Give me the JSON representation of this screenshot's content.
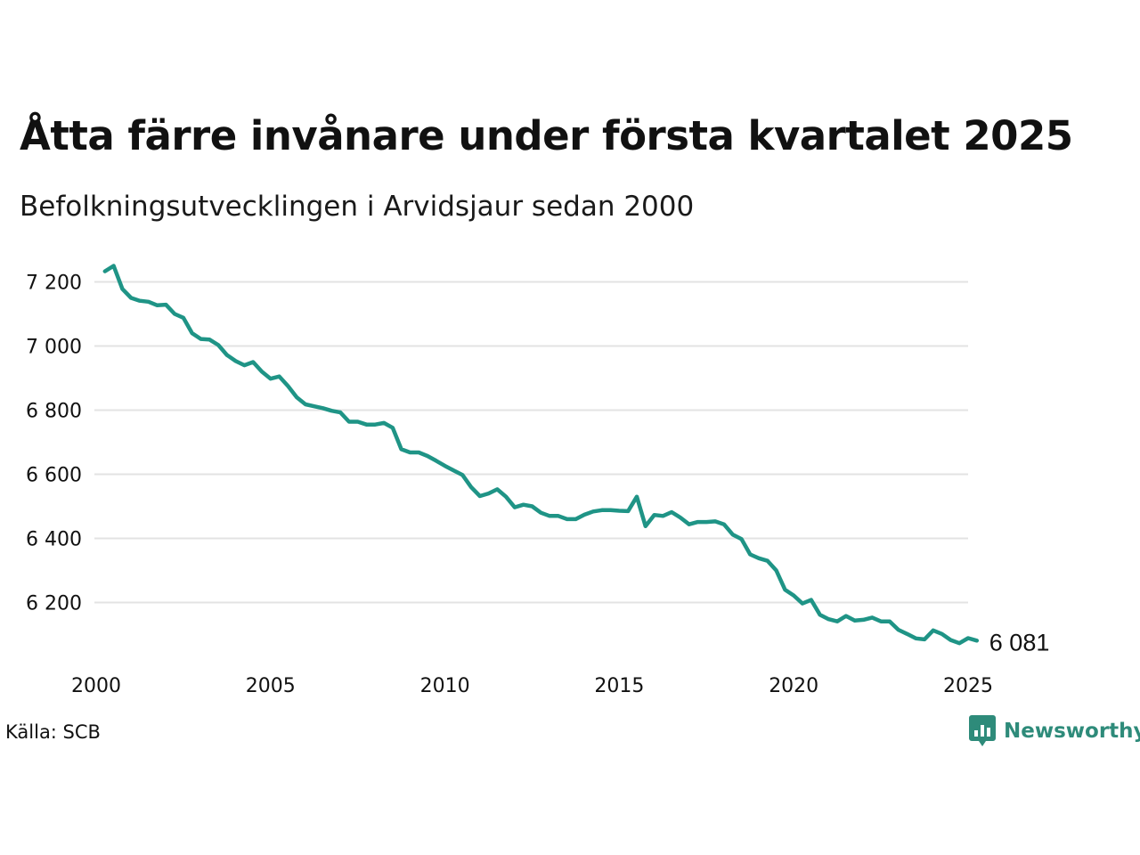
{
  "chart": {
    "title": "Åtta färre invånare under första kvartalet 2025",
    "subtitle": "Befolkningsutvecklingen i Arvidsjaur sedan 2000",
    "source": "Källa: SCB",
    "brand": "Newsworthy",
    "end_label": "6 081",
    "line_color": "#1f9486",
    "grid_color": "#e3e3e3",
    "brand_color": "#2e8b7a"
  },
  "chart_data": {
    "type": "line",
    "xlim": [
      2000,
      2025
    ],
    "ylim": [
      6080,
      7250
    ],
    "x_ticks": [
      2000,
      2005,
      2010,
      2015,
      2020,
      2025
    ],
    "x_tick_labels": [
      "2000",
      "2005",
      "2010",
      "2015",
      "2020",
      "2025"
    ],
    "y_ticks": [
      6200,
      6400,
      6600,
      6800,
      7000,
      7200
    ],
    "y_tick_labels": [
      "6 200",
      "6 400",
      "6 600",
      "6 800",
      "7 000",
      "7 200"
    ],
    "grid": "horizontal",
    "x": [
      2000.25,
      2000.5,
      2000.75,
      2001,
      2001.25,
      2001.5,
      2001.75,
      2002,
      2002.25,
      2002.5,
      2002.75,
      2003,
      2003.25,
      2003.5,
      2003.75,
      2004,
      2004.25,
      2004.5,
      2004.75,
      2005,
      2005.25,
      2005.5,
      2005.75,
      2006,
      2006.25,
      2006.5,
      2006.75,
      2007,
      2007.25,
      2007.5,
      2007.75,
      2008,
      2008.25,
      2008.5,
      2008.75,
      2009,
      2009.25,
      2009.5,
      2009.75,
      2010,
      2010.25,
      2010.5,
      2010.75,
      2011,
      2011.25,
      2011.5,
      2011.75,
      2012,
      2012.25,
      2012.5,
      2012.75,
      2013,
      2013.25,
      2013.5,
      2013.75,
      2014,
      2014.25,
      2014.5,
      2014.75,
      2015,
      2015.25,
      2015.5,
      2015.75,
      2016,
      2016.25,
      2016.5,
      2016.75,
      2017,
      2017.25,
      2017.5,
      2017.75,
      2018,
      2018.25,
      2018.5,
      2018.75,
      2019,
      2019.25,
      2019.5,
      2019.75,
      2020,
      2020.25,
      2020.5,
      2020.75,
      2021,
      2021.25,
      2021.5,
      2021.75,
      2022,
      2022.25,
      2022.5,
      2022.75,
      2023,
      2023.25,
      2023.5,
      2023.75,
      2024,
      2024.25,
      2024.5,
      2024.75,
      2025,
      2025.25
    ],
    "series": [
      {
        "values": [
          7233,
          7250,
          7178,
          7150,
          7141,
          7138,
          7127,
          7129,
          7100,
          7088,
          7040,
          7022,
          7020,
          7003,
          6972,
          6953,
          6940,
          6950,
          6920,
          6898,
          6905,
          6875,
          6840,
          6818,
          6812,
          6806,
          6798,
          6793,
          6764,
          6764,
          6755,
          6755,
          6760,
          6745,
          6678,
          6668,
          6668,
          6657,
          6642,
          6626,
          6612,
          6598,
          6560,
          6532,
          6540,
          6553,
          6530,
          6497,
          6505,
          6500,
          6480,
          6470,
          6470,
          6460,
          6460,
          6474,
          6484,
          6488,
          6488,
          6486,
          6485,
          6530,
          6438,
          6473,
          6470,
          6482,
          6465,
          6444,
          6451,
          6451,
          6453,
          6444,
          6412,
          6398,
          6350,
          6338,
          6330,
          6300,
          6240,
          6222,
          6197,
          6208,
          6162,
          6148,
          6141,
          6158,
          6144,
          6146,
          6153,
          6141,
          6141,
          6115,
          6102,
          6088,
          6085,
          6113,
          6102,
          6083,
          6073,
          6089,
          6081
        ]
      }
    ]
  }
}
